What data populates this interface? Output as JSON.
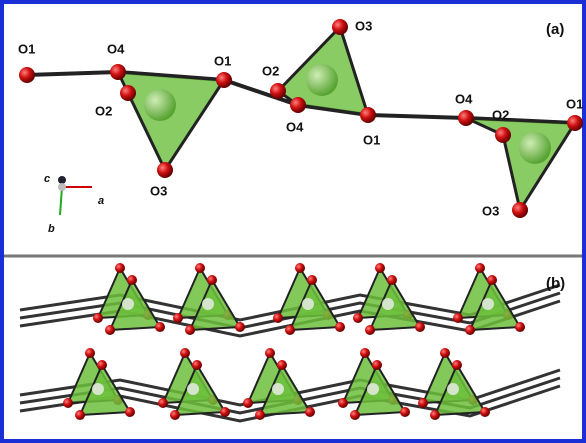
{
  "panels": {
    "a": "(a)",
    "b": "(b)"
  },
  "atoms": [
    "O1",
    "O4",
    "O2",
    "O3",
    "O1",
    "O2",
    "O3",
    "O4",
    "O1",
    "O4",
    "O2",
    "O1",
    "O3"
  ],
  "axes": [
    "c",
    "a",
    "b"
  ]
}
